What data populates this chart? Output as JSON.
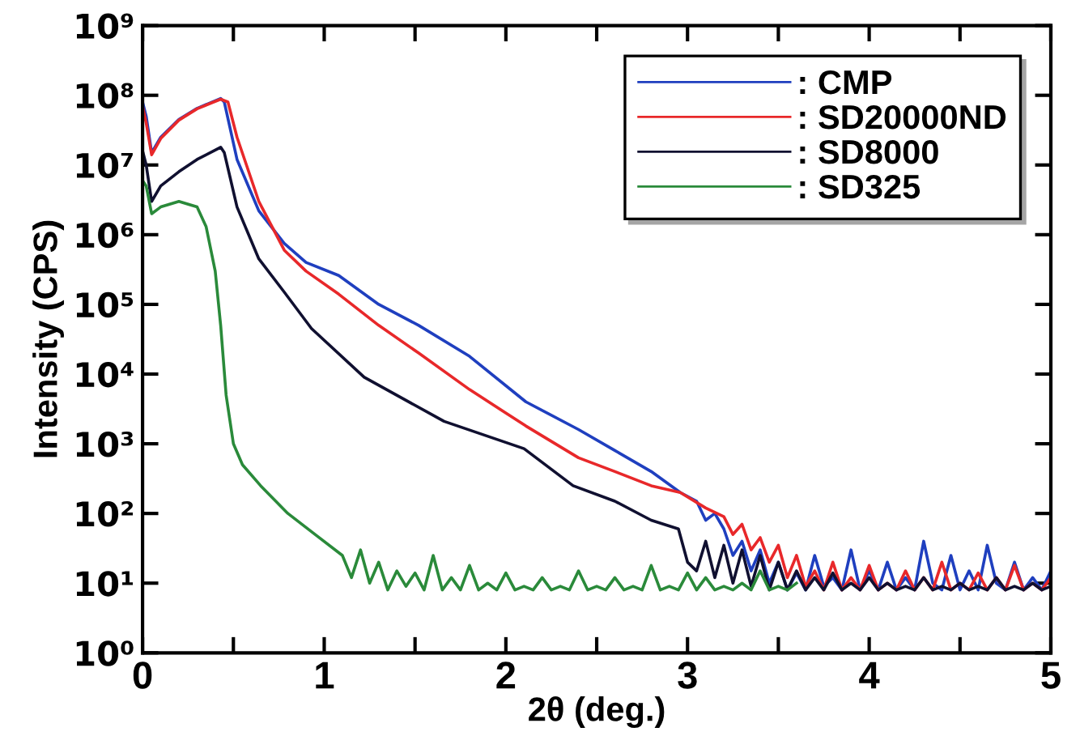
{
  "chart_data": {
    "type": "line",
    "xlabel": "2θ (deg.)",
    "ylabel": "Intensity (CPS)",
    "log": "y",
    "xlim": [
      0,
      5
    ],
    "ylim": [
      1,
      1000000000
    ],
    "xticks": [
      0,
      {
        "value": 0.5,
        "label": null
      },
      1,
      {
        "value": 1.5,
        "label": null
      },
      2,
      {
        "value": 2.5,
        "label": null
      },
      3,
      {
        "value": 3.5,
        "label": null
      },
      4,
      {
        "value": 4.5,
        "label": null
      },
      5
    ],
    "yticks": [
      {
        "value": 1,
        "label": "10⁰"
      },
      {
        "value": 10,
        "label": "10¹"
      },
      {
        "value": 100,
        "label": "10²"
      },
      {
        "value": 1000,
        "label": "10³"
      },
      {
        "value": 10000,
        "label": "10⁴"
      },
      {
        "value": 100000,
        "label": "10⁵"
      },
      {
        "value": 1000000,
        "label": "10⁶"
      },
      {
        "value": 10000000,
        "label": "10⁷"
      },
      {
        "value": 100000000,
        "label": "10⁸"
      },
      {
        "value": 1000000000,
        "label": "10⁹"
      }
    ],
    "grid": false,
    "legend": "top right",
    "marker": "none",
    "line_style": "solid",
    "series": [
      {
        "name": ": CMP",
        "color": "#1f3fbf",
        "x": [
          0,
          0.02,
          0.05,
          0.1,
          0.2,
          0.3,
          0.43,
          0.45,
          0.52,
          0.64,
          0.78,
          0.9,
          1.08,
          1.3,
          1.52,
          1.8,
          2.11,
          2.4,
          2.6,
          2.8,
          2.96,
          3.05,
          3.1,
          3.15,
          3.2,
          3.25,
          3.3,
          3.35,
          3.4,
          3.45,
          3.5,
          3.55,
          3.6,
          3.65,
          3.7,
          3.75,
          3.8,
          3.85,
          3.9,
          3.95,
          4.0,
          4.05,
          4.1,
          4.15,
          4.2,
          4.25,
          4.3,
          4.35,
          4.4,
          4.45,
          4.5,
          4.55,
          4.6,
          4.65,
          4.7,
          4.75,
          4.8,
          4.85,
          4.9,
          4.95,
          5.0
        ],
        "values": [
          80000000,
          50000000,
          15000000,
          25000000,
          45000000,
          65000000,
          90000000,
          80000000,
          12000000,
          2200000,
          750000,
          400000,
          260000,
          100000,
          50000,
          18000,
          4000,
          1600,
          800,
          400,
          200,
          150,
          80,
          100,
          60,
          25,
          40,
          15,
          30,
          10,
          20,
          8,
          14,
          8,
          25,
          9,
          12,
          8,
          30,
          8,
          15,
          8,
          20,
          8,
          12,
          8,
          40,
          10,
          8,
          25,
          8,
          15,
          8,
          35,
          10,
          8,
          20,
          8,
          12,
          8,
          15
        ]
      },
      {
        "name": ": SD20000ND",
        "color": "#e8282a",
        "x": [
          0,
          0.02,
          0.05,
          0.1,
          0.2,
          0.3,
          0.43,
          0.47,
          0.52,
          0.64,
          0.78,
          0.9,
          1.08,
          1.3,
          1.52,
          1.8,
          2.11,
          2.4,
          2.6,
          2.8,
          2.96,
          3.1,
          3.2,
          3.25,
          3.3,
          3.35,
          3.4,
          3.45,
          3.5,
          3.55,
          3.6,
          3.65,
          3.7,
          3.75,
          3.8,
          3.85,
          3.9,
          3.95,
          4.0,
          4.05,
          4.1,
          4.15,
          4.2,
          4.25,
          4.3,
          4.35,
          4.4,
          4.45,
          4.5,
          4.55,
          4.6,
          4.65,
          4.7,
          4.75,
          4.8,
          4.85,
          4.9,
          4.95,
          5.0
        ],
        "values": [
          70000000,
          40000000,
          14000000,
          24000000,
          44000000,
          64000000,
          88000000,
          80000000,
          25000000,
          3000000,
          600000,
          300000,
          140000,
          50000,
          20000,
          6000,
          1800,
          630,
          400,
          250,
          200,
          120,
          90,
          50,
          70,
          30,
          45,
          20,
          35,
          12,
          25,
          9,
          15,
          8,
          20,
          8,
          12,
          8,
          18,
          8,
          10,
          8,
          15,
          8,
          12,
          8,
          20,
          8,
          10,
          8,
          14,
          8,
          12,
          8,
          18,
          8,
          10,
          8,
          12
        ]
      },
      {
        "name": ": SD8000",
        "color": "#101030",
        "x": [
          0,
          0.02,
          0.05,
          0.1,
          0.2,
          0.3,
          0.43,
          0.45,
          0.52,
          0.64,
          0.78,
          0.93,
          1.22,
          1.66,
          2.1,
          2.37,
          2.6,
          2.8,
          2.95,
          3.0,
          3.05,
          3.1,
          3.15,
          3.2,
          3.25,
          3.3,
          3.35,
          3.4,
          3.45,
          3.5,
          3.55,
          3.6,
          3.65,
          3.7,
          3.75,
          3.8,
          3.85,
          3.9,
          3.95,
          4.0,
          4.05,
          4.1,
          4.15,
          4.2,
          4.25,
          4.3,
          4.35,
          4.4,
          4.45,
          4.5,
          4.55,
          4.6,
          4.65,
          4.7,
          4.75,
          4.8,
          4.85,
          4.9,
          4.95,
          5.0
        ],
        "values": [
          16000000,
          10000000,
          3000000,
          5000000,
          8000000,
          12000000,
          18000000,
          15000000,
          2500000,
          450000,
          150000,
          45000,
          9000,
          2100,
          850,
          250,
          150,
          80,
          60,
          20,
          15,
          40,
          12,
          35,
          10,
          30,
          9,
          25,
          8,
          20,
          8,
          15,
          8,
          12,
          8,
          14,
          8,
          10,
          8,
          12,
          8,
          10,
          8,
          9,
          8,
          12,
          8,
          9,
          8,
          10,
          8,
          9,
          8,
          12,
          8,
          9,
          8,
          10,
          8,
          9
        ]
      },
      {
        "name": ": SD325",
        "color": "#2a8a3a",
        "x": [
          0,
          0.02,
          0.05,
          0.1,
          0.2,
          0.3,
          0.35,
          0.4,
          0.43,
          0.46,
          0.5,
          0.55,
          0.65,
          0.8,
          0.95,
          1.1,
          1.15,
          1.2,
          1.25,
          1.3,
          1.35,
          1.4,
          1.45,
          1.5,
          1.55,
          1.6,
          1.65,
          1.7,
          1.75,
          1.8,
          1.85,
          1.9,
          1.95,
          2.0,
          2.05,
          2.1,
          2.15,
          2.2,
          2.25,
          2.3,
          2.35,
          2.4,
          2.45,
          2.5,
          2.55,
          2.6,
          2.65,
          2.7,
          2.75,
          2.8,
          2.85,
          2.9,
          2.95,
          3.0,
          3.05,
          3.1,
          3.15,
          3.2,
          3.25,
          3.3,
          3.35,
          3.4,
          3.45,
          3.5,
          3.55,
          3.6
        ],
        "values": [
          6000000,
          5000000,
          2000000,
          2500000,
          3000000,
          2500000,
          1300000,
          300000,
          50000,
          5000,
          1000,
          500,
          250,
          100,
          50,
          25,
          12,
          30,
          10,
          20,
          8,
          15,
          9,
          14,
          8,
          25,
          8,
          12,
          8,
          18,
          8,
          10,
          8,
          14,
          8,
          9,
          8,
          12,
          8,
          9,
          8,
          15,
          8,
          9,
          8,
          12,
          8,
          9,
          8,
          18,
          8,
          9,
          8,
          14,
          8,
          12,
          8,
          9,
          8,
          10,
          8,
          15,
          8,
          9,
          8,
          10
        ]
      }
    ]
  }
}
